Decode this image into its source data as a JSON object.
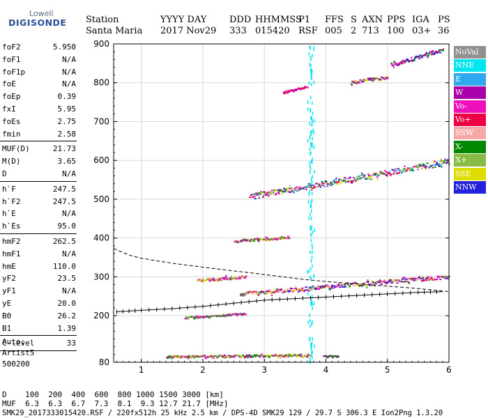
{
  "logo": {
    "top": "Lowell",
    "main": "DIGISONDE"
  },
  "header": {
    "station_label": "Station",
    "station_value": "Santa Maria",
    "date_label": "YYYY DAY",
    "date_value": "2017 Nov29",
    "doy_label": "DDD",
    "doy_value": "333",
    "time_label": "HHMMSS",
    "time_value": "015420",
    "p1_label": "P1",
    "p1_value": "RSF",
    "ffs_label": "FFS",
    "ffs_value": "005",
    "s_label": "S",
    "s_value": "2",
    "axn_label": "AXN",
    "axn_value": "713",
    "pps_label": "PPS",
    "pps_value": "100",
    "iga_label": "IGA",
    "iga_value": "03+",
    "ps_label": "PS",
    "ps_value": "36"
  },
  "parameters": [
    {
      "group": [
        {
          "name": "foF2",
          "value": "5.950"
        },
        {
          "name": "foF1",
          "value": "N/A"
        },
        {
          "name": "foF1p",
          "value": "N/A"
        },
        {
          "name": "foE",
          "value": "N/A"
        },
        {
          "name": "foEp",
          "value": "0.39"
        },
        {
          "name": "fxI",
          "value": "5.95"
        },
        {
          "name": "foEs",
          "value": "2.75"
        },
        {
          "name": "fmin",
          "value": "2.58"
        }
      ]
    },
    {
      "group": [
        {
          "name": "MUF(D)",
          "value": "21.73"
        },
        {
          "name": "M(D)",
          "value": "3.65"
        },
        {
          "name": "D",
          "value": "N/A"
        }
      ]
    },
    {
      "group": [
        {
          "name": "h`F",
          "value": "247.5"
        },
        {
          "name": "h`F2",
          "value": "247.5"
        },
        {
          "name": "h`E",
          "value": "N/A"
        },
        {
          "name": "h`Es",
          "value": "95.0"
        }
      ]
    },
    {
      "group": [
        {
          "name": "hmF2",
          "value": "262.5"
        },
        {
          "name": "hmF1",
          "value": "N/A"
        },
        {
          "name": "hmE",
          "value": "110.0"
        },
        {
          "name": "yF2",
          "value": "23.5"
        },
        {
          "name": "yF1",
          "value": "N/A"
        },
        {
          "name": "yE",
          "value": "20.0"
        },
        {
          "name": "B0",
          "value": "26.2"
        },
        {
          "name": "B1",
          "value": "1.39"
        }
      ]
    },
    {
      "group": [
        {
          "name": "C-level",
          "value": "33"
        }
      ]
    }
  ],
  "scaling": {
    "line1": "Auto:",
    "line2": "Artist5",
    "line3": "500200"
  },
  "legend": [
    {
      "label": "NoVal",
      "color": "#909090"
    },
    {
      "label": "NNE",
      "color": "#00e5ee"
    },
    {
      "label": "E",
      "color": "#2ea8ee"
    },
    {
      "label": "W",
      "color": "#aa00aa"
    },
    {
      "label": "Vo-",
      "color": "#ee11bb"
    },
    {
      "label": "Vo+",
      "color": "#ee0044"
    },
    {
      "label": "SSW",
      "color": "#f5a8a8"
    },
    {
      "label": "X-",
      "color": "#008800"
    },
    {
      "label": "X+",
      "color": "#88bb44"
    },
    {
      "label": "SSE",
      "color": "#dddd00"
    },
    {
      "label": "NNW",
      "color": "#2222dd"
    }
  ],
  "footer": {
    "d_label": "D",
    "d_values": "100  200  400  600  800 1000 1500 3000 [km]",
    "muf_label": "MUF",
    "muf_values": "6.3  6.3  6.7  7.3  8.1  9.3 12.7 21.7 [MHz]",
    "file_line": "SMK29_2017333015420.RSF / 220fx512h 25 kHz 2.5 km / DPS-4D SMK29 129 / 29.7 S 306.3 E Ion2Png 1.3.20"
  },
  "chart_data": {
    "type": "scatter",
    "xlabel": "",
    "ylabel": "",
    "xlim": [
      0.55,
      6.0
    ],
    "ylim": [
      80,
      900
    ],
    "x_ticks": [
      1,
      2,
      3,
      4,
      5,
      6
    ],
    "y_ticks": [
      80,
      200,
      300,
      400,
      500,
      600,
      700,
      800,
      900
    ],
    "grid": true,
    "legend_placement": "right",
    "traces": [
      {
        "name": "Es",
        "x0": 1.4,
        "x1": 3.75,
        "h0": 94,
        "h1": 98,
        "spread": 6,
        "colors": [
          "#008800",
          "#ee11bb",
          "#aa00aa",
          "#88bb44",
          "#dddd00"
        ]
      },
      {
        "name": "Es",
        "x0": 3.95,
        "x1": 4.2,
        "h0": 96,
        "h1": 96,
        "spread": 4,
        "colors": [
          "#008800",
          "#aa00aa"
        ]
      },
      {
        "name": "F2 O",
        "x0": 2.6,
        "x1": 6.0,
        "h0": 255,
        "h1": 300,
        "spread": 10,
        "colors": [
          "#ee0044",
          "#ee11bb",
          "#aa00aa",
          "#008800",
          "#dddd00",
          "#2222dd",
          "#f5a8a8"
        ]
      },
      {
        "name": "F2 X",
        "x0": 1.7,
        "x1": 2.7,
        "h0": 195,
        "h1": 205,
        "spread": 5,
        "colors": [
          "#008800",
          "#88bb44",
          "#ee11bb",
          "#aa00aa"
        ]
      },
      {
        "name": "F2 diffuse",
        "x0": 1.9,
        "x1": 2.7,
        "h0": 290,
        "h1": 300,
        "spread": 8,
        "colors": [
          "#88bb44",
          "#aa00aa",
          "#ee11bb",
          "#dddd00"
        ]
      },
      {
        "name": "2F2",
        "x0": 2.75,
        "x1": 6.0,
        "h0": 505,
        "h1": 595,
        "spread": 14,
        "colors": [
          "#ee0044",
          "#ee11bb",
          "#aa00aa",
          "#008800",
          "#dddd00",
          "#2222dd",
          "#2ea8ee",
          "#88bb44"
        ]
      },
      {
        "name": "2Es",
        "x0": 2.5,
        "x1": 3.4,
        "h0": 392,
        "h1": 402,
        "spread": 6,
        "colors": [
          "#aa00aa",
          "#008800",
          "#ee11bb",
          "#dddd00"
        ]
      },
      {
        "name": "3F2",
        "x0": 3.3,
        "x1": 3.7,
        "h0": 775,
        "h1": 790,
        "spread": 6,
        "colors": [
          "#ee0044",
          "#ee11bb",
          "#aa00aa"
        ]
      },
      {
        "name": "3F2",
        "x0": 4.4,
        "x1": 5.0,
        "h0": 800,
        "h1": 815,
        "spread": 8,
        "colors": [
          "#ee11bb",
          "#008800",
          "#dddd00",
          "#aa00aa"
        ]
      },
      {
        "name": "3F2",
        "x0": 5.05,
        "x1": 5.9,
        "h0": 845,
        "h1": 885,
        "spread": 10,
        "colors": [
          "#ee0044",
          "#ee11bb",
          "#aa00aa",
          "#008800",
          "#2222dd"
        ]
      }
    ],
    "interference": {
      "x": 3.75,
      "x_width": 0.12,
      "h0": 80,
      "h1": 900,
      "color": "#00e5ee"
    },
    "profile_curve": {
      "x": [
        0.6,
        1.0,
        1.5,
        2.0,
        2.5,
        3.0,
        3.5,
        4.0,
        4.5,
        5.0,
        5.5,
        5.9
      ],
      "h": [
        210,
        214,
        218,
        224,
        232,
        240,
        244,
        248,
        252,
        256,
        260,
        262
      ]
    },
    "model_curve": {
      "x": [
        0.55,
        0.8,
        1.0,
        1.3,
        1.6,
        2.0,
        2.4,
        2.8,
        3.2,
        3.6,
        4.0,
        4.5,
        5.0,
        5.5,
        6.0
      ],
      "h": [
        373,
        356,
        348,
        340,
        333,
        325,
        317,
        310,
        302,
        294,
        288,
        282,
        276,
        270,
        262
      ]
    }
  }
}
